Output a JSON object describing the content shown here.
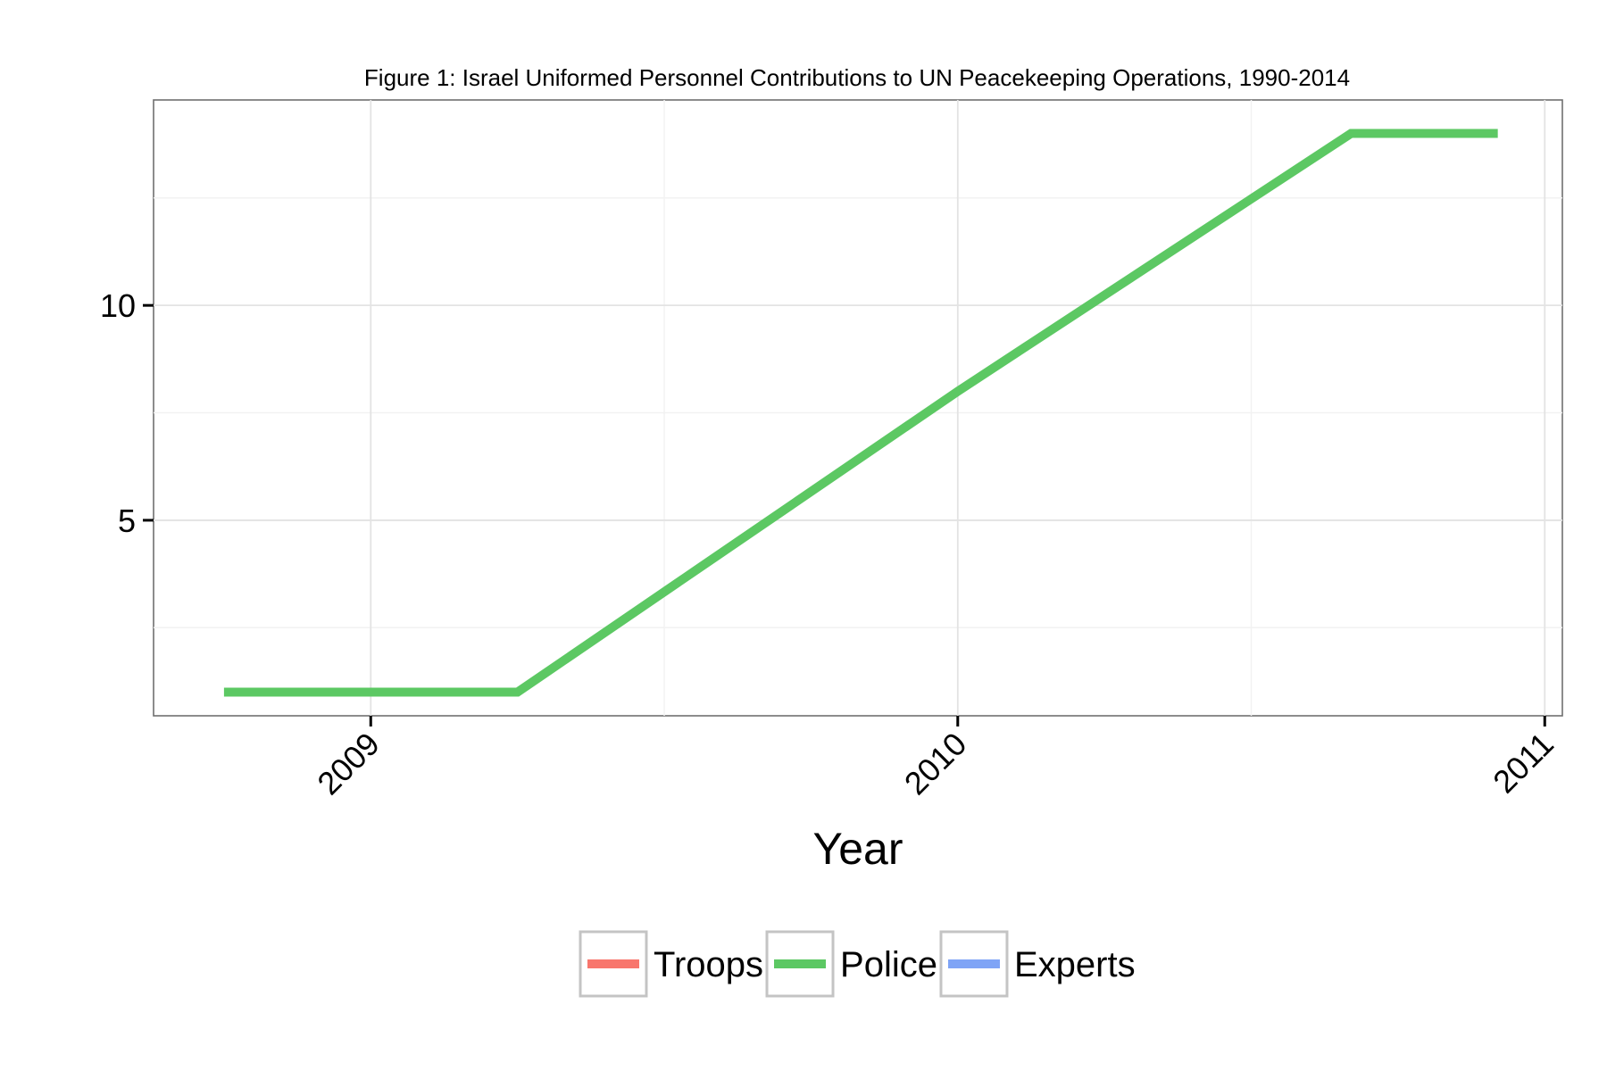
{
  "chart_data": {
    "type": "line",
    "title": "Figure 1: Israel Uniformed Personnel Contributions to UN Peacekeeping Operations, 1990-2014",
    "xlabel": "Year",
    "ylabel": "",
    "x_ticks": [
      2009,
      2010,
      2011
    ],
    "y_ticks": [
      5,
      10
    ],
    "xlim": [
      2008.63,
      2011.03
    ],
    "ylim": [
      0.45,
      14.78
    ],
    "grid": true,
    "legend_position": "bottom",
    "series": [
      {
        "name": "Troops",
        "color": "#f8766d",
        "x": [],
        "y": []
      },
      {
        "name": "Police",
        "color": "#5cc863",
        "x": [
          2008.75,
          2009.25,
          2010.0,
          2010.67,
          2010.92
        ],
        "y": [
          1,
          1,
          8,
          14,
          14
        ]
      },
      {
        "name": "Experts",
        "color": "#7fa4f6",
        "x": [],
        "y": []
      }
    ]
  }
}
